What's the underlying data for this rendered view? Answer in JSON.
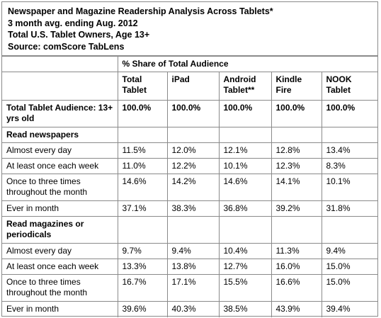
{
  "chart_data": {
    "type": "table",
    "title_lines": [
      "Newspaper and Magazine Readership Analysis Across Tablets*",
      "3 month avg. ending Aug. 2012",
      "Total U.S. Tablet Owners, Age 13+",
      "Source: comScore TabLens"
    ],
    "group_header": "% Share of Total Audience",
    "columns": [
      "Total Tablet",
      "iPad",
      "Android Tablet**",
      "Kindle Fire",
      "NOOK Tablet"
    ],
    "total_row": {
      "label": "Total Tablet Audience: 13+ yrs old",
      "values": [
        "100.0%",
        "100.0%",
        "100.0%",
        "100.0%",
        "100.0%"
      ]
    },
    "sections": [
      {
        "title": "Read newspapers",
        "rows": [
          {
            "label": "Almost every day",
            "values": [
              "11.5%",
              "12.0%",
              "12.1%",
              "12.8%",
              "13.4%"
            ]
          },
          {
            "label": "At least once each week",
            "values": [
              "11.0%",
              "12.2%",
              "10.1%",
              "12.3%",
              "8.3%"
            ]
          },
          {
            "label": "Once to three times throughout the month",
            "values": [
              "14.6%",
              "14.2%",
              "14.6%",
              "14.1%",
              "10.1%"
            ]
          },
          {
            "label": "Ever in month",
            "values": [
              "37.1%",
              "38.3%",
              "36.8%",
              "39.2%",
              "31.8%"
            ]
          }
        ]
      },
      {
        "title": "Read magazines or periodicals",
        "rows": [
          {
            "label": "Almost every day",
            "values": [
              "9.7%",
              "9.4%",
              "10.4%",
              "11.3%",
              "9.4%"
            ]
          },
          {
            "label": "At least once each week",
            "values": [
              "13.3%",
              "13.8%",
              "12.7%",
              "16.0%",
              "15.0%"
            ]
          },
          {
            "label": "Once to three times throughout the month",
            "values": [
              "16.7%",
              "17.1%",
              "15.5%",
              "16.6%",
              "15.0%"
            ]
          },
          {
            "label": "Ever in month",
            "values": [
              "39.6%",
              "40.3%",
              "38.5%",
              "43.9%",
              "39.4%"
            ]
          }
        ]
      }
    ]
  }
}
